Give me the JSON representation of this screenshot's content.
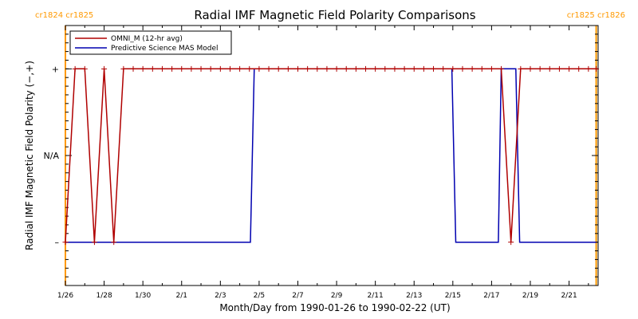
{
  "chart_data": {
    "type": "line",
    "title": "Radial IMF Magnetic Field Polarity Comparisons",
    "xlabel": "Month/Day from 1990-01-26 to 1990-02-22 (UT)",
    "ylabel": "Radial IMF Magnetic Field Polarity (−,+)",
    "x_unit": "days since 1990-01-26 00:00 UT",
    "xlim": [
      0,
      27.5
    ],
    "ylim": [
      -1.5,
      1.5
    ],
    "x_ticks": [
      {
        "x": 0,
        "label": "1/26"
      },
      {
        "x": 2,
        "label": "1/28"
      },
      {
        "x": 4,
        "label": "1/30"
      },
      {
        "x": 6,
        "label": "2/1"
      },
      {
        "x": 8,
        "label": "2/3"
      },
      {
        "x": 10,
        "label": "2/5"
      },
      {
        "x": 12,
        "label": "2/7"
      },
      {
        "x": 14,
        "label": "2/9"
      },
      {
        "x": 16,
        "label": "2/11"
      },
      {
        "x": 18,
        "label": "2/13"
      },
      {
        "x": 20,
        "label": "2/15"
      },
      {
        "x": 22,
        "label": "2/17"
      },
      {
        "x": 24,
        "label": "2/19"
      },
      {
        "x": 26,
        "label": "2/21"
      }
    ],
    "y_ticks": [
      {
        "y": 1,
        "label": "+"
      },
      {
        "y": 0,
        "label": "N/A"
      },
      {
        "y": -1,
        "label": "–"
      }
    ],
    "rotation_markers": {
      "left_label": "cr1824 cr1825",
      "right_label": "cr1825 cr1826",
      "color": "#ff9900",
      "x": [
        0,
        27.4
      ]
    },
    "legend": {
      "placement": "top-left",
      "entries": [
        {
          "label": "OMNI_M (12-hr avg)",
          "color": "#b00000"
        },
        {
          "label": "Predictive Science MAS Model",
          "color": "#0000b0"
        }
      ]
    },
    "series": [
      {
        "name": "OMNI_M (12-hr avg)",
        "color": "#b00000",
        "marker": "plus",
        "x": [
          0,
          0.5,
          1.0,
          1.5,
          2.0,
          2.5,
          3.0,
          3.5,
          4.0,
          4.5,
          5.0,
          5.5,
          6.0,
          6.5,
          7.0,
          7.5,
          8.0,
          8.5,
          9.0,
          9.5,
          10.0,
          10.5,
          11.0,
          11.5,
          12.0,
          12.5,
          13.0,
          13.5,
          14.0,
          14.5,
          15.0,
          15.5,
          16.0,
          16.5,
          17.0,
          17.5,
          18.0,
          18.5,
          19.0,
          19.5,
          20.0,
          20.5,
          21.0,
          21.5,
          22.0,
          22.5,
          23.0,
          23.5,
          24.0,
          24.5,
          25.0,
          25.5,
          26.0,
          26.5,
          27.0,
          27.4
        ],
        "y": [
          -1,
          1,
          1,
          -1,
          1,
          -1,
          1,
          1,
          1,
          1,
          1,
          1,
          1,
          1,
          1,
          1,
          1,
          1,
          1,
          1,
          1,
          1,
          1,
          1,
          1,
          1,
          1,
          1,
          1,
          1,
          1,
          1,
          1,
          1,
          1,
          1,
          1,
          1,
          1,
          1,
          1,
          1,
          1,
          1,
          1,
          1,
          -1,
          1,
          1,
          1,
          1,
          1,
          1,
          1,
          1,
          1
        ]
      },
      {
        "name": "Predictive Science MAS Model",
        "color": "#0000b0",
        "marker": "none",
        "x": [
          0,
          9.55,
          9.75,
          19.95,
          20.15,
          22.35,
          22.5,
          23.25,
          23.45,
          27.4
        ],
        "y": [
          -1,
          -1,
          1,
          1,
          -1,
          -1,
          1,
          1,
          -1,
          -1
        ]
      }
    ]
  }
}
